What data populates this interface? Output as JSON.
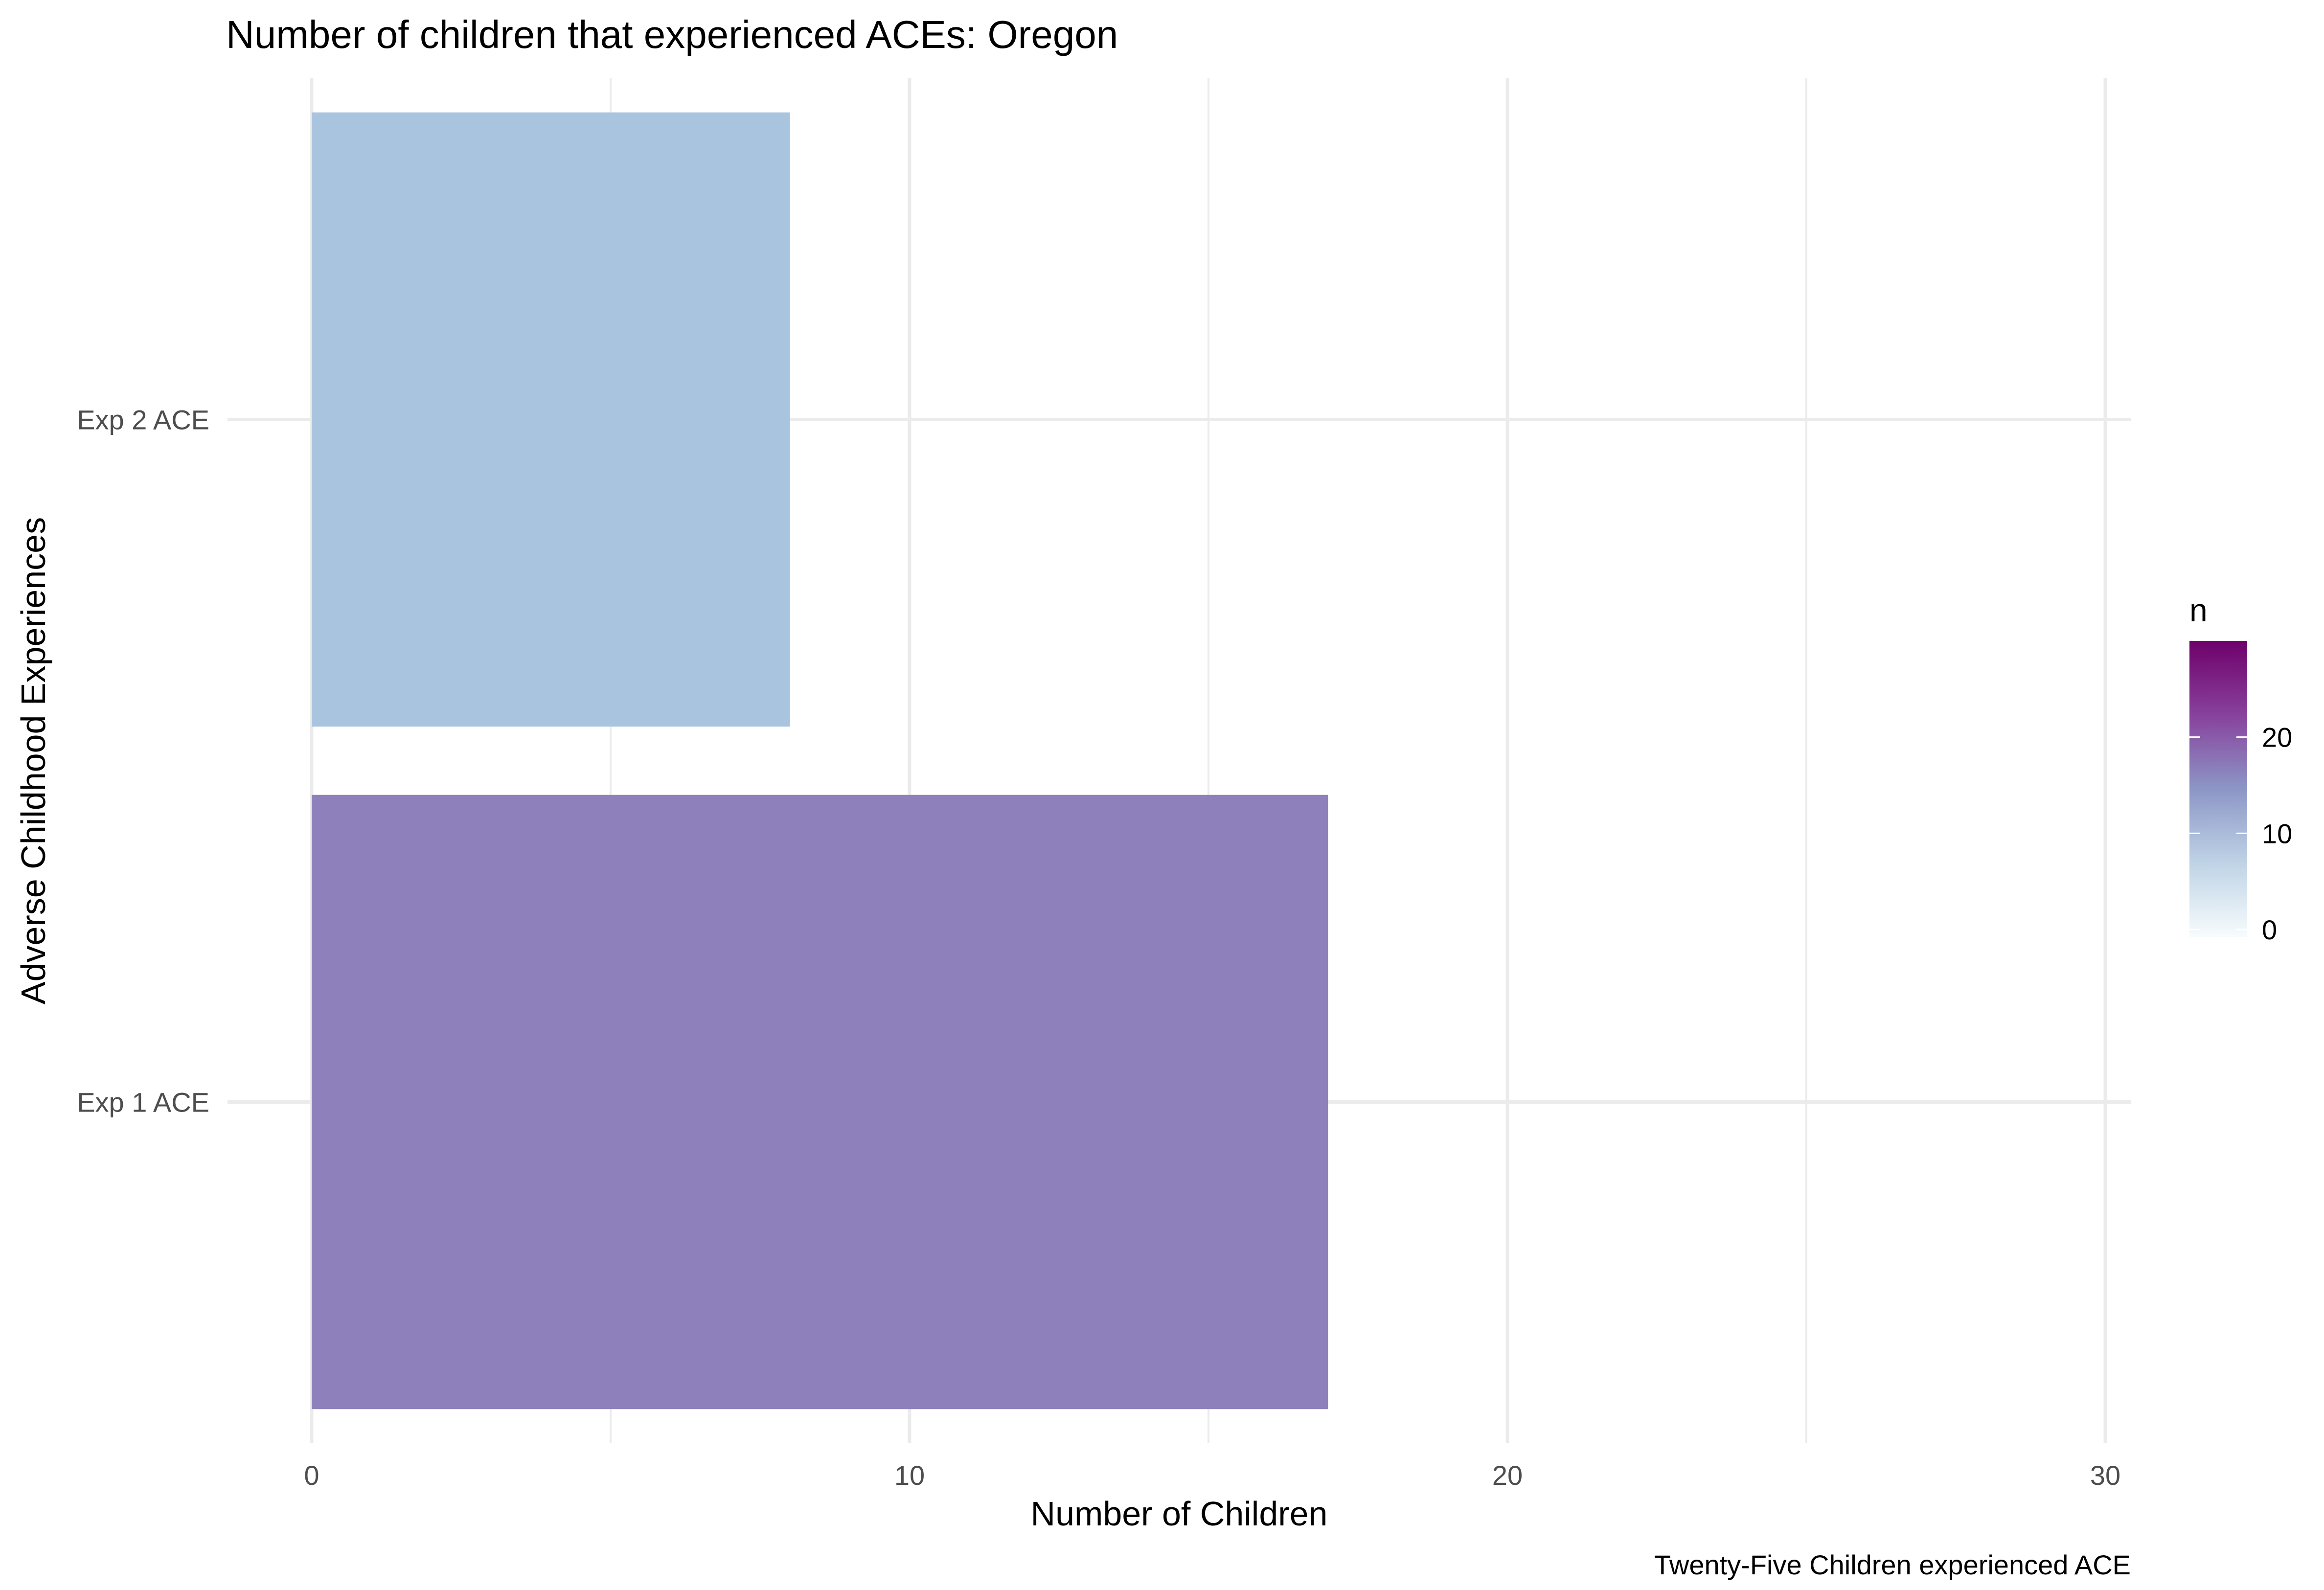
{
  "chart_data": {
    "type": "bar",
    "orientation": "horizontal",
    "title": "Number of children that experienced ACEs: Oregon",
    "xlabel": "Number of Children",
    "ylabel": "Adverse Childhood Experiences",
    "caption": "Twenty-Five Children experienced ACE",
    "categories": [
      "Exp 1 ACE",
      "Exp 2 ACE"
    ],
    "values": [
      17,
      8
    ],
    "xlim": [
      0,
      30.5
    ],
    "xticks": [
      0,
      10,
      20,
      30
    ],
    "grid": true,
    "legend": {
      "title": "n",
      "placement": "right",
      "type": "colorbar",
      "range": [
        0,
        30
      ],
      "ticks": [
        0,
        10,
        20
      ],
      "colors": [
        "#f7fcfd",
        "#bfd3e6",
        "#8c96c6",
        "#88419d",
        "#6e016b"
      ]
    },
    "bar_colors": [
      "#8e81bb",
      "#a9c4df"
    ]
  }
}
